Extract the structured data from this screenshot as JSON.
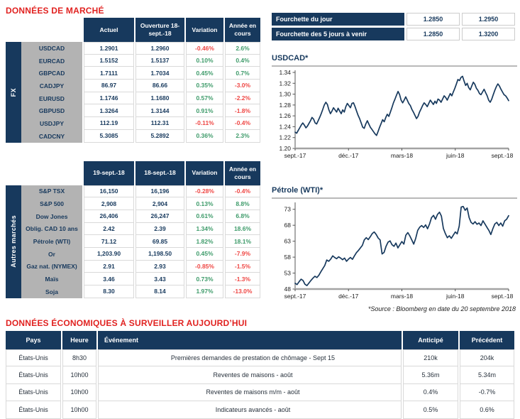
{
  "colors": {
    "navy": "#17395D",
    "title_red": "#E12220",
    "positive": "#3E9B6A",
    "negative": "#EF4744",
    "label_gray": "#B3B3B3"
  },
  "market_section": {
    "title": "DONNÉES DE MARCHÉ",
    "fx_table": {
      "group_label": "FX",
      "headers": {
        "current": "Actuel",
        "open": "Ouverture 18-sept.-18",
        "variation": "Variation",
        "ytd": "Année en cours"
      },
      "rows": [
        {
          "label": "USDCAD",
          "current": "1.2901",
          "open": "1.2960",
          "variation": "-0.46%",
          "variation_cls": "neg",
          "ytd": "2.6%",
          "ytd_cls": "pos"
        },
        {
          "label": "EURCAD",
          "current": "1.5152",
          "open": "1.5137",
          "variation": "0.10%",
          "variation_cls": "pos",
          "ytd": "0.4%",
          "ytd_cls": "pos"
        },
        {
          "label": "GBPCAD",
          "current": "1.7111",
          "open": "1.7034",
          "variation": "0.45%",
          "variation_cls": "pos",
          "ytd": "0.7%",
          "ytd_cls": "pos"
        },
        {
          "label": "CADJPY",
          "current": "86.97",
          "open": "86.66",
          "variation": "0.35%",
          "variation_cls": "pos",
          "ytd": "-3.0%",
          "ytd_cls": "neg"
        },
        {
          "label": "EURUSD",
          "current": "1.1746",
          "open": "1.1680",
          "variation": "0.57%",
          "variation_cls": "pos",
          "ytd": "-2.2%",
          "ytd_cls": "neg"
        },
        {
          "label": "GBPUSD",
          "current": "1.3264",
          "open": "1.3144",
          "variation": "0.91%",
          "variation_cls": "pos",
          "ytd": "-1.8%",
          "ytd_cls": "neg"
        },
        {
          "label": "USDJPY",
          "current": "112.19",
          "open": "112.31",
          "variation": "-0.11%",
          "variation_cls": "neg",
          "ytd": "-0.4%",
          "ytd_cls": "neg"
        },
        {
          "label": "CADCNY",
          "current": "5.3085",
          "open": "5.2892",
          "variation": "0.36%",
          "variation_cls": "pos",
          "ytd": "2.3%",
          "ytd_cls": "pos"
        }
      ]
    },
    "markets_table": {
      "group_label": "Autres marchés",
      "headers": {
        "current": "19-sept.-18",
        "open": "18-sept.-18",
        "variation": "Variation",
        "ytd": "Année en cours"
      },
      "rows": [
        {
          "label": "S&P TSX",
          "current": "16,150",
          "open": "16,196",
          "variation": "-0.28%",
          "variation_cls": "neg",
          "ytd": "-0.4%",
          "ytd_cls": "neg"
        },
        {
          "label": "S&P 500",
          "current": "2,908",
          "open": "2,904",
          "variation": "0.13%",
          "variation_cls": "pos",
          "ytd": "8.8%",
          "ytd_cls": "pos"
        },
        {
          "label": "Dow Jones",
          "current": "26,406",
          "open": "26,247",
          "variation": "0.61%",
          "variation_cls": "pos",
          "ytd": "6.8%",
          "ytd_cls": "pos"
        },
        {
          "label": "Oblig. CAD 10 ans",
          "current": "2.42",
          "open": "2.39",
          "variation": "1.34%",
          "variation_cls": "pos",
          "ytd": "18.6%",
          "ytd_cls": "pos"
        },
        {
          "label": "Pétrole (WTI)",
          "current": "71.12",
          "open": "69.85",
          "variation": "1.82%",
          "variation_cls": "pos",
          "ytd": "18.1%",
          "ytd_cls": "pos"
        },
        {
          "label": "Or",
          "current": "1,203.90",
          "open": "1,198.50",
          "variation": "0.45%",
          "variation_cls": "pos",
          "ytd": "-7.9%",
          "ytd_cls": "neg"
        },
        {
          "label": "Gaz nat. (NYMEX)",
          "current": "2.91",
          "open": "2.93",
          "variation": "-0.85%",
          "variation_cls": "neg",
          "ytd": "-1.5%",
          "ytd_cls": "neg"
        },
        {
          "label": "Maïs",
          "current": "3.46",
          "open": "3.43",
          "variation": "0.73%",
          "variation_cls": "pos",
          "ytd": "-1.3%",
          "ytd_cls": "neg"
        },
        {
          "label": "Soja",
          "current": "8.30",
          "open": "8.14",
          "variation": "1.97%",
          "variation_cls": "pos",
          "ytd": "-13.0%",
          "ytd_cls": "neg"
        }
      ]
    }
  },
  "range_table": {
    "rows": [
      {
        "label": "Fourchette du jour",
        "low": "1.2850",
        "high": "1.2950"
      },
      {
        "label": "Fourchette des 5 jours à venir",
        "low": "1.2850",
        "high": "1.3200"
      }
    ]
  },
  "source_note": "*Source : Bloomberg en date du 20 septembre 2018",
  "econ_section": {
    "title": "DONNÉES ÉCONOMIQUES À SURVEILLER AUJOURD’HUI",
    "headers": {
      "country": "Pays",
      "time": "Heure",
      "event": "Événement",
      "expected": "Anticipé",
      "previous": "Précédent"
    },
    "rows": [
      {
        "country": "États-Unis",
        "time": "8h30",
        "event": "Premières demandes de prestation de chômage - Sept 15",
        "expected": "210k",
        "previous": "204k"
      },
      {
        "country": "États-Unis",
        "time": "10h00",
        "event": "Reventes de maisons - août",
        "expected": "5.36m",
        "previous": "5.34m"
      },
      {
        "country": "États-Unis",
        "time": "10h00",
        "event": "Reventes de maisons m/m - août",
        "expected": "0.4%",
        "previous": "-0.7%"
      },
      {
        "country": "États-Unis",
        "time": "10h00",
        "event": "Indicateurs avancés - août",
        "expected": "0.5%",
        "previous": "0.6%"
      }
    ]
  },
  "chart_data": [
    {
      "type": "line",
      "title": "USDCAD*",
      "xlabel": "",
      "ylabel": "",
      "grid": false,
      "legend": "none",
      "x_labels": [
        "sept.-17",
        "déc.-17",
        "mars-18",
        "juin-18",
        "sept.-18"
      ],
      "ylim": [
        1.2,
        1.34
      ],
      "yticks": [
        1.2,
        1.22,
        1.24,
        1.26,
        1.28,
        1.3,
        1.32,
        1.34
      ],
      "ytick_labels": [
        "1.20",
        "1.22",
        "1.24",
        "1.26",
        "1.28",
        "1.30",
        "1.32",
        "1.34"
      ],
      "line_color": "#17395D",
      "values": [
        1.23,
        1.228,
        1.233,
        1.238,
        1.243,
        1.247,
        1.243,
        1.238,
        1.241,
        1.246,
        1.251,
        1.257,
        1.254,
        1.247,
        1.245,
        1.251,
        1.257,
        1.264,
        1.272,
        1.28,
        1.285,
        1.281,
        1.271,
        1.264,
        1.269,
        1.275,
        1.271,
        1.267,
        1.274,
        1.269,
        1.264,
        1.271,
        1.267,
        1.277,
        1.283,
        1.279,
        1.275,
        1.283,
        1.284,
        1.277,
        1.269,
        1.261,
        1.255,
        1.247,
        1.239,
        1.237,
        1.245,
        1.251,
        1.245,
        1.239,
        1.235,
        1.231,
        1.227,
        1.224,
        1.231,
        1.239,
        1.246,
        1.253,
        1.249,
        1.257,
        1.263,
        1.259,
        1.267,
        1.275,
        1.284,
        1.291,
        1.298,
        1.305,
        1.299,
        1.289,
        1.284,
        1.289,
        1.295,
        1.289,
        1.283,
        1.279,
        1.272,
        1.267,
        1.261,
        1.255,
        1.259,
        1.267,
        1.273,
        1.279,
        1.284,
        1.281,
        1.277,
        1.283,
        1.289,
        1.285,
        1.281,
        1.287,
        1.283,
        1.291,
        1.289,
        1.285,
        1.291,
        1.297,
        1.294,
        1.289,
        1.295,
        1.301,
        1.297,
        1.304,
        1.311,
        1.319,
        1.327,
        1.325,
        1.331,
        1.333,
        1.324,
        1.316,
        1.32,
        1.312,
        1.308,
        1.315,
        1.322,
        1.318,
        1.311,
        1.307,
        1.301,
        1.299,
        1.304,
        1.309,
        1.303,
        1.297,
        1.289,
        1.285,
        1.291,
        1.299,
        1.307,
        1.314,
        1.319,
        1.315,
        1.309,
        1.304,
        1.299,
        1.297,
        1.293,
        1.288
      ]
    },
    {
      "type": "line",
      "title": "Pétrole (WTI)*",
      "xlabel": "",
      "ylabel": "",
      "grid": false,
      "legend": "none",
      "x_labels": [
        "sept.-17",
        "déc.-17",
        "mars-18",
        "juin-18",
        "sept.-18"
      ],
      "ylim": [
        48,
        74.5
      ],
      "yticks": [
        48,
        53,
        58,
        63,
        68,
        73
      ],
      "ytick_labels": [
        "48",
        "53",
        "58",
        "63",
        "68",
        "73"
      ],
      "line_color": "#17395D",
      "values": [
        49.8,
        49.4,
        50.3,
        51.1,
        50.7,
        49.5,
        49.1,
        49.9,
        50.7,
        51.4,
        52.0,
        51.6,
        52.3,
        53.4,
        54.4,
        55.4,
        57.1,
        56.7,
        57.4,
        58.4,
        57.9,
        57.5,
        58.1,
        57.7,
        57.2,
        57.7,
        56.7,
        57.4,
        57.9,
        57.3,
        58.4,
        59.4,
        60.1,
        60.9,
        61.7,
        63.4,
        64.1,
        63.5,
        64.4,
        65.4,
        65.9,
        65.1,
        64.0,
        63.4,
        59.0,
        59.5,
        61.4,
        62.7,
        63.1,
        61.9,
        61.4,
        62.4,
        60.9,
        61.9,
        62.9,
        62.1,
        64.9,
        65.7,
        64.7,
        63.4,
        62.1,
        63.9,
        66.4,
        67.4,
        67.9,
        67.3,
        68.1,
        66.9,
        68.4,
        70.4,
        71.1,
        69.9,
        71.4,
        72.1,
        70.9,
        67.0,
        65.4,
        64.1,
        64.7,
        63.9,
        64.9,
        65.9,
        65.3,
        67.7,
        73.7,
        73.9,
        72.7,
        73.4,
        70.4,
        68.9,
        68.4,
        69.1,
        68.3,
        68.7,
        67.9,
        69.4,
        68.4,
        67.4,
        66.4,
        65.1,
        66.9,
        68.4,
        68.9,
        67.9,
        68.7,
        67.7,
        69.4,
        69.9,
        71.0
      ]
    }
  ]
}
